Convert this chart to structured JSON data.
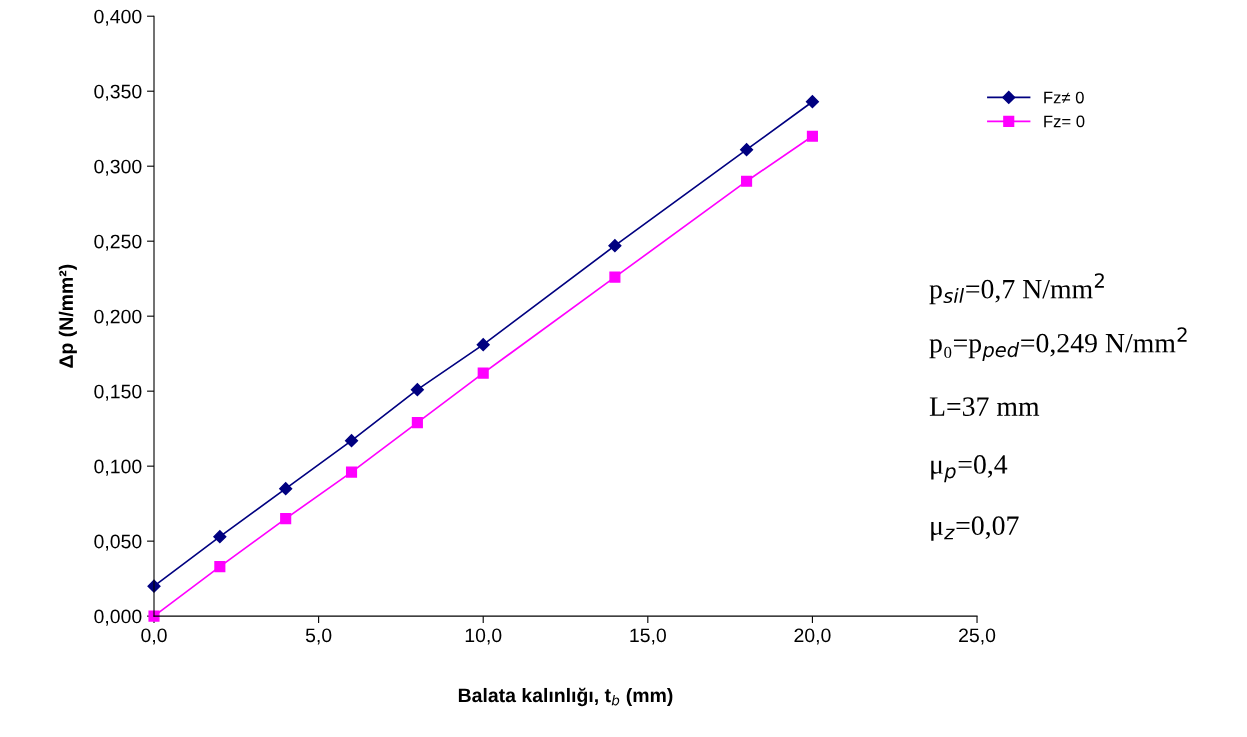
{
  "chart_data": {
    "type": "line",
    "xlabel": "Balata kalınlığı, t$_{b}$ (mm)",
    "ylabel": "Δp (N/mm²)",
    "x": [
      0,
      2,
      4,
      6,
      8,
      10,
      14,
      18,
      20
    ],
    "series": [
      {
        "name": "Fz≠ 0",
        "color": "#000080",
        "marker": "diamond",
        "values": [
          0.02,
          0.053,
          0.085,
          0.117,
          0.151,
          0.181,
          0.247,
          0.311,
          0.343
        ]
      },
      {
        "name": "Fz= 0",
        "color": "#ff00ff",
        "marker": "square",
        "values": [
          0.0,
          0.033,
          0.065,
          0.096,
          0.129,
          0.162,
          0.226,
          0.29,
          0.32
        ]
      }
    ],
    "xlim": [
      0,
      25
    ],
    "ylim": [
      0,
      0.4
    ],
    "xticks": [
      {
        "value": 0,
        "label": "0,0"
      },
      {
        "value": 5,
        "label": "5,0"
      },
      {
        "value": 10,
        "label": "10,0"
      },
      {
        "value": 15,
        "label": "15,0"
      },
      {
        "value": 20,
        "label": "20,0"
      },
      {
        "value": 25,
        "label": "25,0"
      }
    ],
    "yticks": [
      {
        "value": 0,
        "label": "0,000"
      },
      {
        "value": 0.05,
        "label": "0,050"
      },
      {
        "value": 0.1,
        "label": "0,100"
      },
      {
        "value": 0.15,
        "label": "0,150"
      },
      {
        "value": 0.2,
        "label": "0,200"
      },
      {
        "value": 0.25,
        "label": "0,250"
      },
      {
        "value": 0.3,
        "label": "0,300"
      },
      {
        "value": 0.35,
        "label": "0,350"
      },
      {
        "value": 0.4,
        "label": "0,400"
      }
    ],
    "annotations": [
      "p$_{sil}$=0,7 N/mm$^{2}$",
      "p₀=p$_{ped}$=0,249 N/mm$^{2}$",
      "L=37 mm",
      "μ$_{p}$=0,4",
      "μ$_{z}$=0,07"
    ],
    "legend": "right",
    "grid": false,
    "line_style": "solid"
  }
}
